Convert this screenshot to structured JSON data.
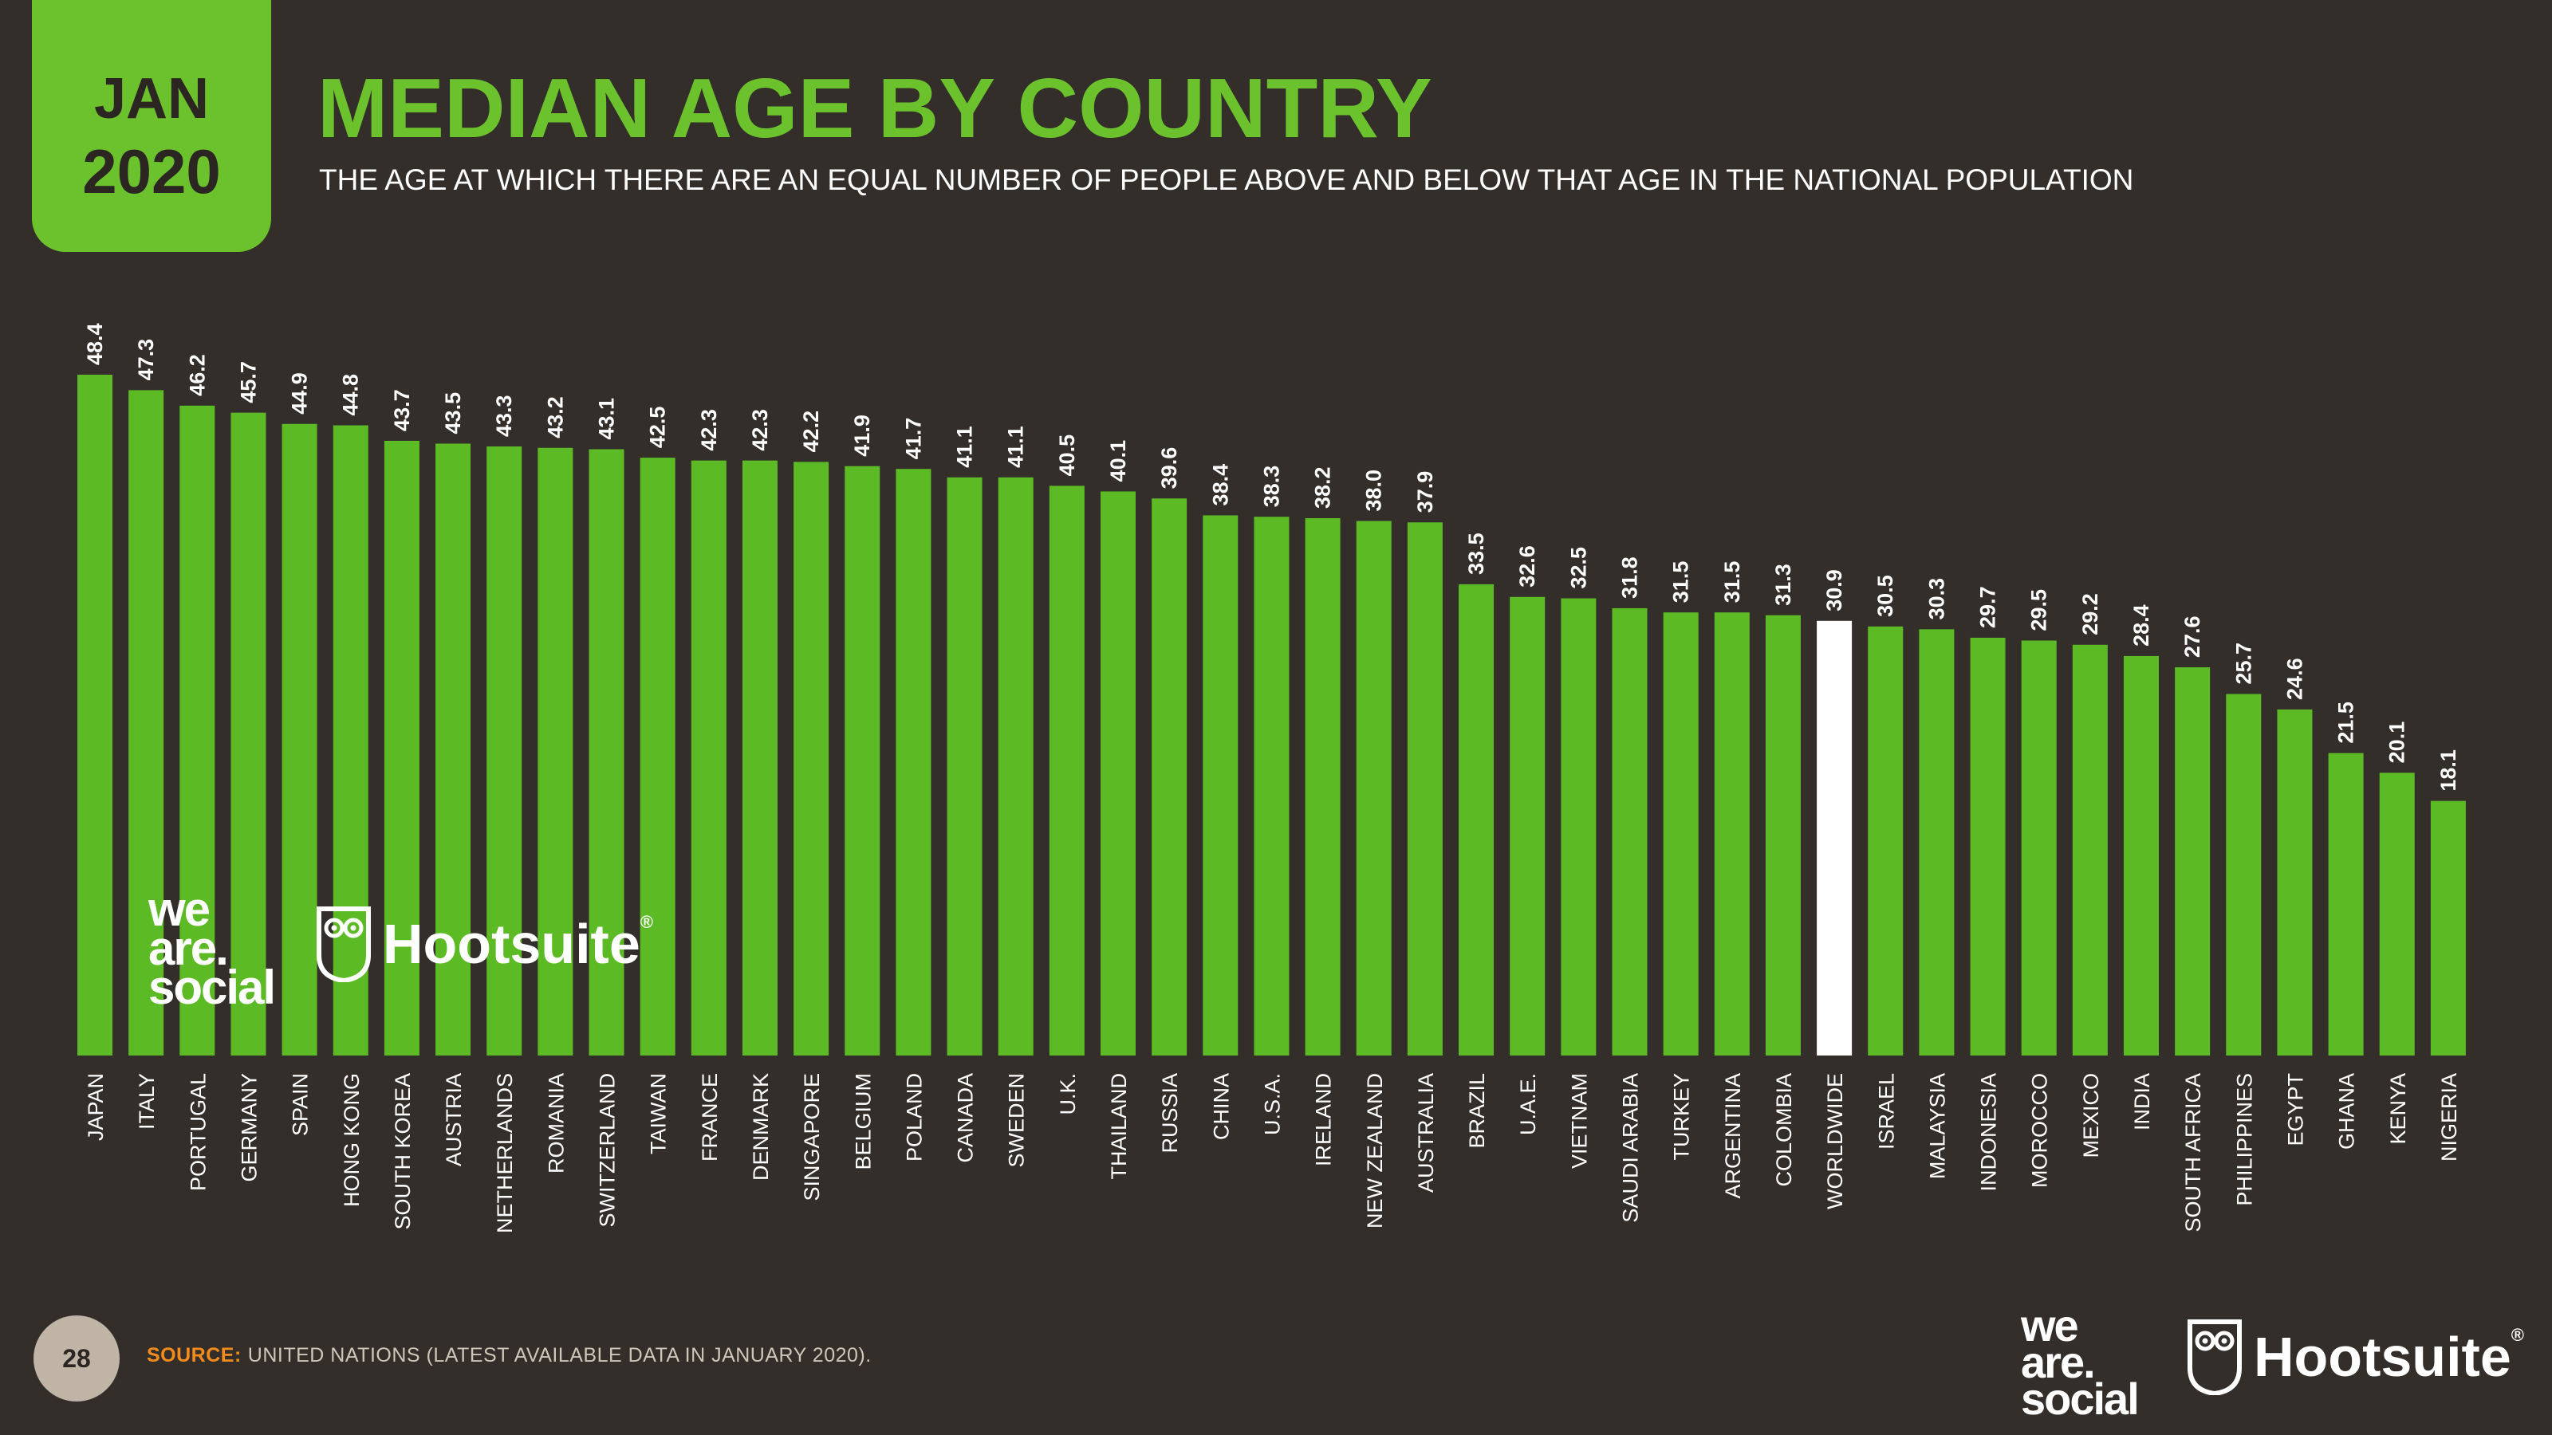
{
  "header": {
    "month": "JAN",
    "year": "2020",
    "title": "MEDIAN AGE BY COUNTRY",
    "subtitle": "THE AGE AT WHICH THERE ARE AN EQUAL NUMBER OF PEOPLE ABOVE AND BELOW THAT AGE IN THE NATIONAL POPULATION"
  },
  "brands": {
    "we_are_social": [
      "we",
      "are.",
      "social"
    ],
    "hootsuite": "Hootsuite",
    "registered_mark": "®"
  },
  "footer": {
    "page_number": "28",
    "source_label": "SOURCE:",
    "source_text": "UNITED NATIONS (LATEST AVAILABLE DATA IN JANUARY 2020)."
  },
  "colors": {
    "background": "#342e2b",
    "bar": "#5cbb25",
    "highlight_bar": "#ffffff",
    "accent": "#6cc22c",
    "source_label": "#f28c1c",
    "text": "#ffffff"
  },
  "chart_data": {
    "type": "bar",
    "categories": [
      "JAPAN",
      "ITALY",
      "PORTUGAL",
      "GERMANY",
      "SPAIN",
      "HONG KONG",
      "SOUTH KOREA",
      "AUSTRIA",
      "NETHERLANDS",
      "ROMANIA",
      "SWITZERLAND",
      "TAIWAN",
      "FRANCE",
      "DENMARK",
      "SINGAPORE",
      "BELGIUM",
      "POLAND",
      "CANADA",
      "SWEDEN",
      "U.K.",
      "THAILAND",
      "RUSSIA",
      "CHINA",
      "U.S.A.",
      "IRELAND",
      "NEW ZEALAND",
      "AUSTRALIA",
      "BRAZIL",
      "U.A.E.",
      "VIETNAM",
      "SAUDI ARABIA",
      "TURKEY",
      "ARGENTINA",
      "COLOMBIA",
      "WORLDWIDE",
      "ISRAEL",
      "MALAYSIA",
      "INDONESIA",
      "MOROCCO",
      "MEXICO",
      "INDIA",
      "SOUTH AFRICA",
      "PHILIPPINES",
      "EGYPT",
      "GHANA",
      "KENYA",
      "NIGERIA"
    ],
    "values": [
      48.4,
      47.3,
      46.2,
      45.7,
      44.9,
      44.8,
      43.7,
      43.5,
      43.3,
      43.2,
      43.1,
      42.5,
      42.3,
      42.3,
      42.2,
      41.9,
      41.7,
      41.1,
      41.1,
      40.5,
      40.1,
      39.6,
      38.4,
      38.3,
      38.2,
      38.0,
      37.9,
      33.5,
      32.6,
      32.5,
      31.8,
      31.5,
      31.5,
      31.3,
      30.9,
      30.5,
      30.3,
      29.7,
      29.5,
      29.2,
      28.4,
      27.6,
      25.7,
      24.6,
      21.5,
      20.1,
      18.1
    ],
    "value_labels": [
      "48.4",
      "47.3",
      "46.2",
      "45.7",
      "44.9",
      "44.8",
      "43.7",
      "43.5",
      "43.3",
      "43.2",
      "43.1",
      "42.5",
      "42.3",
      "42.3",
      "42.2",
      "41.9",
      "41.7",
      "41.1",
      "41.1",
      "40.5",
      "40.1",
      "39.6",
      "38.4",
      "38.3",
      "38.2",
      "38.0",
      "37.9",
      "33.5",
      "32.6",
      "32.5",
      "31.8",
      "31.5",
      "31.5",
      "31.3",
      "30.9",
      "30.5",
      "30.3",
      "29.7",
      "29.5",
      "29.2",
      "28.4",
      "27.6",
      "25.7",
      "24.6",
      "21.5",
      "20.1",
      "18.1"
    ],
    "highlight_category": "WORLDWIDE",
    "ylim": [
      0,
      48.4
    ],
    "grid": false,
    "legend": false
  }
}
